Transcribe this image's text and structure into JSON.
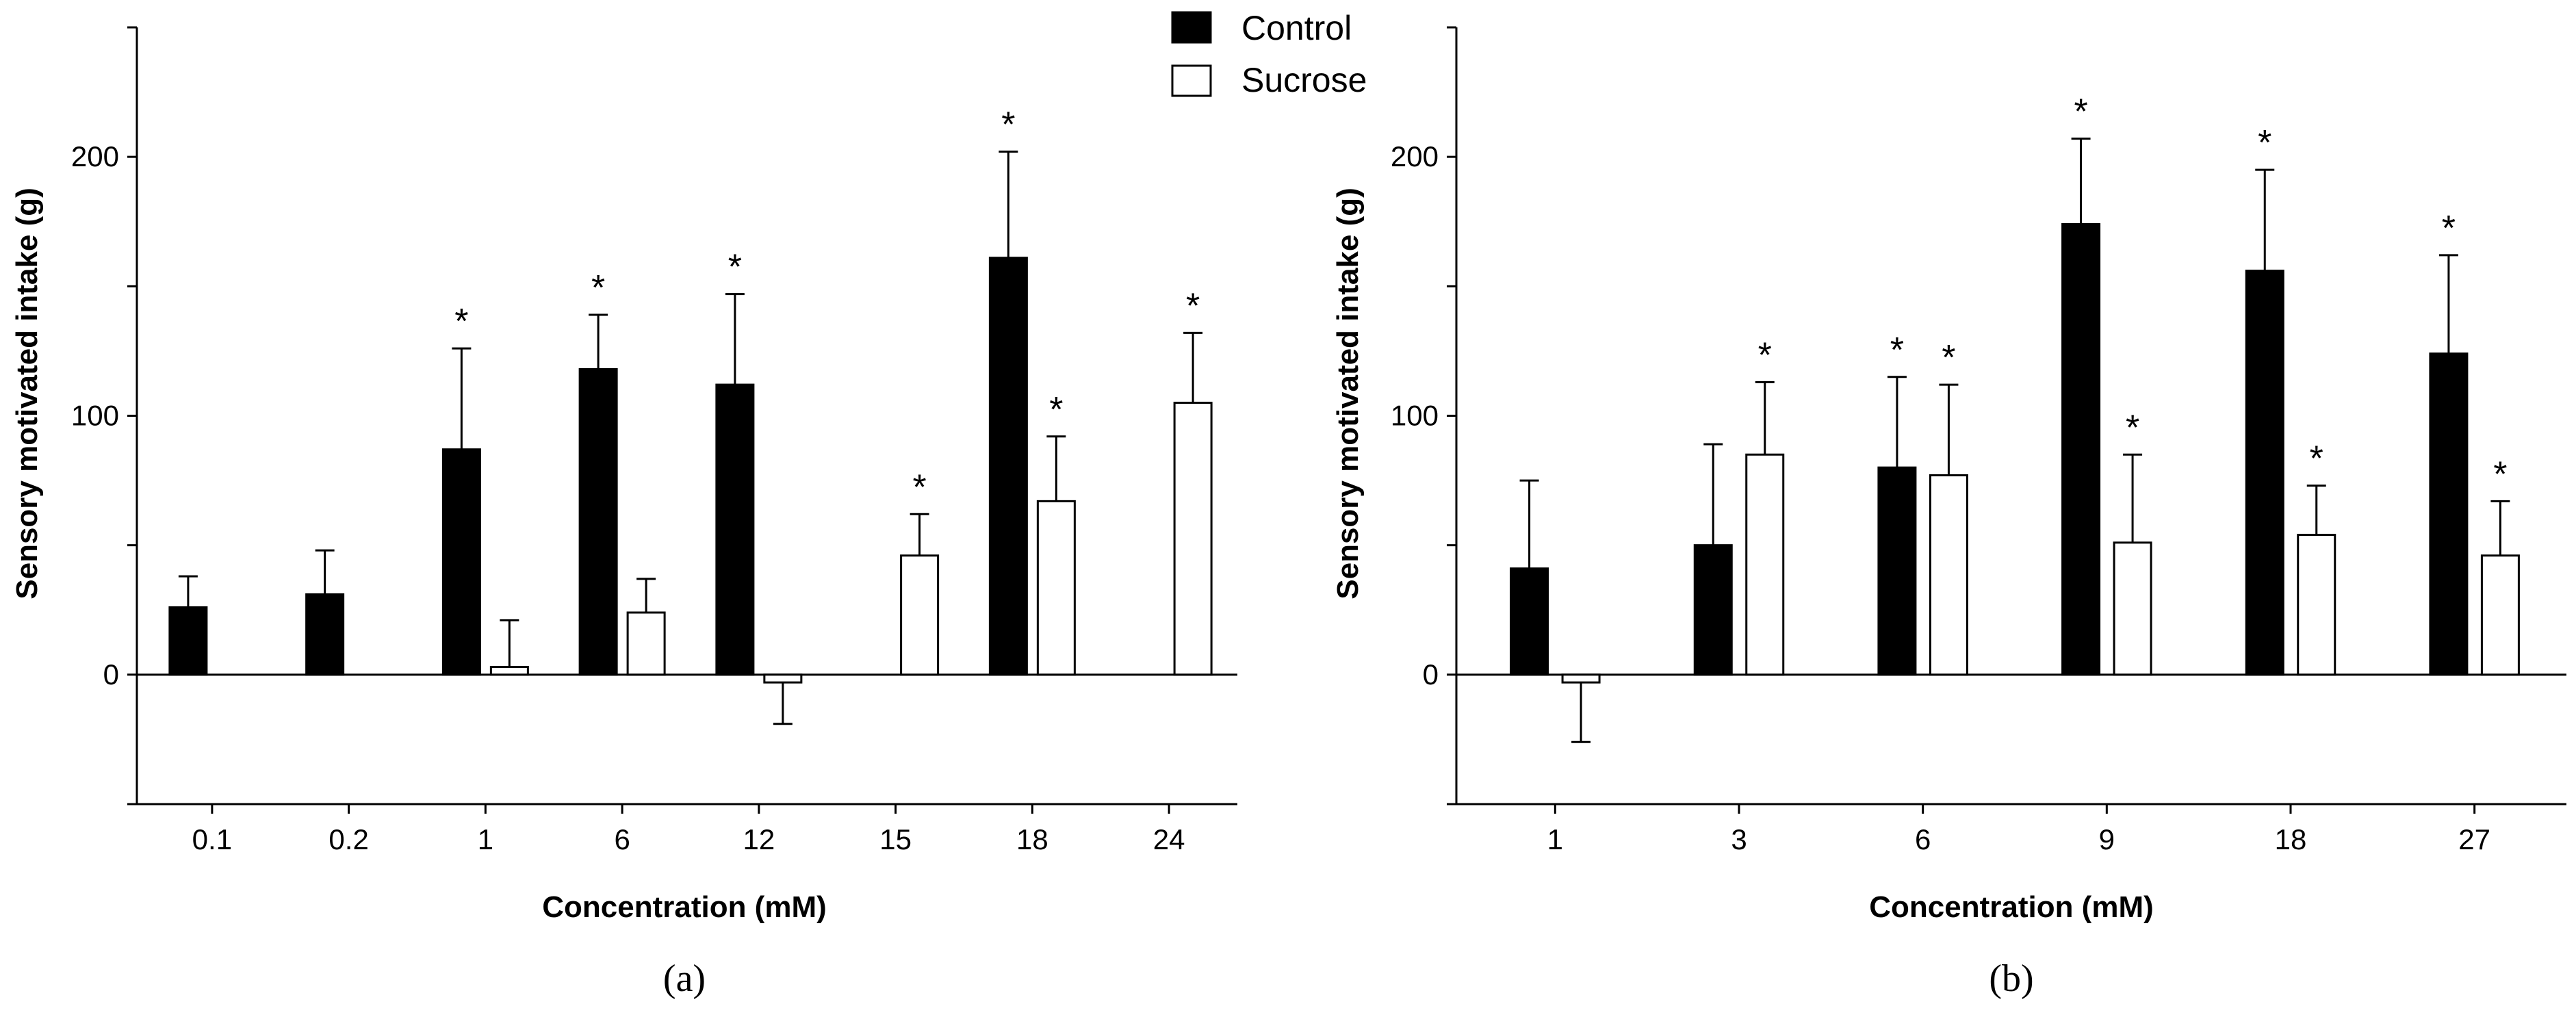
{
  "legend": [
    {
      "label": "Control",
      "fill": "#000000"
    },
    {
      "label": "Sucrose",
      "fill": "#ffffff"
    }
  ],
  "colors": {
    "control": "#000000",
    "sucrose": "#ffffff",
    "stroke": "#000000"
  },
  "chart_data": [
    {
      "type": "bar",
      "panel": "a",
      "panel_label": "(a)",
      "xlabel": "Concentration (mM)",
      "ylabel": "Sensory motivated intake (g)",
      "ylim": [
        -50,
        250
      ],
      "yticks": [
        0,
        100,
        200
      ],
      "categories": [
        "0.1",
        "0.2",
        "1",
        "6",
        "12",
        "15",
        "18",
        "24"
      ],
      "series": [
        {
          "name": "Control",
          "values": [
            26,
            31,
            87,
            118,
            112,
            null,
            161,
            null
          ],
          "errors": [
            12,
            17,
            39,
            21,
            35,
            null,
            41,
            null
          ],
          "significant": [
            false,
            false,
            true,
            true,
            true,
            false,
            true,
            false
          ]
        },
        {
          "name": "Sucrose",
          "values": [
            null,
            null,
            3,
            24,
            -3,
            46,
            67,
            105
          ],
          "errors": [
            null,
            null,
            18,
            13,
            16,
            16,
            25,
            27
          ],
          "significant": [
            false,
            false,
            false,
            false,
            false,
            true,
            true,
            true
          ]
        }
      ],
      "significance_marker": "*"
    },
    {
      "type": "bar",
      "panel": "b",
      "panel_label": "(b)",
      "xlabel": "Concentration (mM)",
      "ylabel": "Sensory motivated intake (g)",
      "ylim": [
        -50,
        250
      ],
      "yticks": [
        0,
        100,
        200
      ],
      "categories": [
        "1",
        "3",
        "6",
        "9",
        "18",
        "27"
      ],
      "series": [
        {
          "name": "Control",
          "values": [
            41,
            50,
            80,
            174,
            156,
            124
          ],
          "errors": [
            34,
            39,
            35,
            33,
            39,
            38
          ],
          "significant": [
            false,
            false,
            true,
            true,
            true,
            true
          ]
        },
        {
          "name": "Sucrose",
          "values": [
            -3,
            85,
            77,
            51,
            54,
            46
          ],
          "errors": [
            23,
            28,
            35,
            34,
            19,
            21
          ],
          "significant": [
            false,
            true,
            true,
            true,
            true,
            true
          ]
        }
      ],
      "significance_marker": "*"
    }
  ]
}
